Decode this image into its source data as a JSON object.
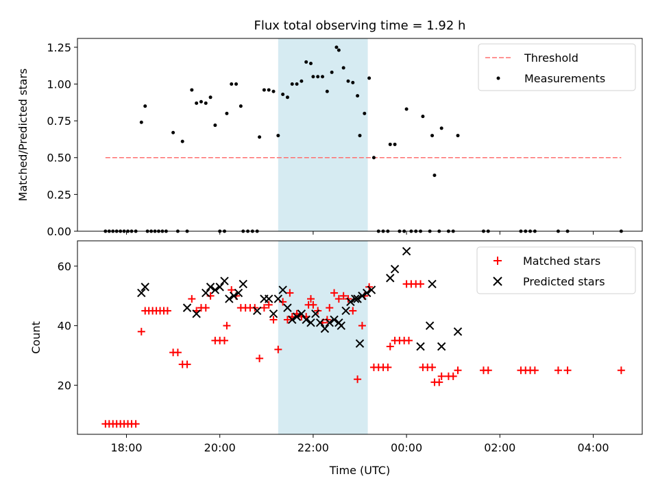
{
  "colors": {
    "threshold": "#ff6f6f",
    "measurement": "#000000",
    "matched": "#ff0000",
    "predicted": "#000000",
    "span_fill": "#add8e6"
  },
  "chart_data": [
    {
      "type": "scatter",
      "title": "Flux total observing time = 1.92 h",
      "xlabel": "",
      "ylabel": "Matched/Predicted stars",
      "x_unit": "hours since 00:00 UTC of first night",
      "xlim": [
        16.95,
        29.05
      ],
      "ylim": [
        0,
        1.31
      ],
      "yticks": [
        0,
        0.25,
        0.5,
        0.75,
        1.0,
        1.25
      ],
      "ytick_labels": [
        "0.00",
        "0.25",
        "0.50",
        "0.75",
        "1.00",
        "1.25"
      ],
      "highlight_span": [
        21.25,
        23.17
      ],
      "legend": {
        "position": "upper right",
        "entries": [
          "Threshold",
          "Measurements"
        ]
      },
      "series": [
        {
          "name": "Threshold",
          "style": "dashed-line",
          "x": [
            17.55,
            28.6
          ],
          "y": [
            0.5,
            0.5
          ]
        },
        {
          "name": "Measurements",
          "style": "dot",
          "points": [
            [
              17.55,
              0
            ],
            [
              17.63,
              0
            ],
            [
              17.71,
              0
            ],
            [
              17.79,
              0
            ],
            [
              17.87,
              0
            ],
            [
              17.95,
              0
            ],
            [
              18.03,
              0
            ],
            [
              18.11,
              0
            ],
            [
              18.2,
              0
            ],
            [
              18.32,
              0.74
            ],
            [
              18.4,
              0.85
            ],
            [
              18.45,
              0
            ],
            [
              18.53,
              0
            ],
            [
              18.61,
              0
            ],
            [
              18.69,
              0
            ],
            [
              18.77,
              0
            ],
            [
              18.85,
              0
            ],
            [
              19.0,
              0.67
            ],
            [
              19.1,
              0
            ],
            [
              19.2,
              0.61
            ],
            [
              19.3,
              0
            ],
            [
              19.4,
              0.96
            ],
            [
              19.5,
              0.87
            ],
            [
              19.6,
              0.88
            ],
            [
              19.7,
              0.87
            ],
            [
              19.8,
              0.91
            ],
            [
              19.9,
              0.72
            ],
            [
              20.0,
              0
            ],
            [
              20.1,
              0
            ],
            [
              20.15,
              0.8
            ],
            [
              20.25,
              1.0
            ],
            [
              20.35,
              1.0
            ],
            [
              20.45,
              0.85
            ],
            [
              20.5,
              0
            ],
            [
              20.6,
              0
            ],
            [
              20.7,
              0
            ],
            [
              20.8,
              0
            ],
            [
              20.85,
              0.64
            ],
            [
              20.95,
              0.96
            ],
            [
              21.05,
              0.96
            ],
            [
              21.15,
              0.95
            ],
            [
              21.25,
              0.65
            ],
            [
              21.35,
              0.93
            ],
            [
              21.45,
              0.91
            ],
            [
              21.55,
              1.0
            ],
            [
              21.65,
              1.0
            ],
            [
              21.75,
              1.02
            ],
            [
              21.85,
              1.15
            ],
            [
              21.95,
              1.14
            ],
            [
              22.0,
              1.05
            ],
            [
              22.1,
              1.05
            ],
            [
              22.2,
              1.05
            ],
            [
              22.3,
              0.95
            ],
            [
              22.4,
              1.08
            ],
            [
              22.5,
              1.25
            ],
            [
              22.55,
              1.23
            ],
            [
              22.65,
              1.11
            ],
            [
              22.75,
              1.02
            ],
            [
              22.85,
              1.01
            ],
            [
              22.95,
              0.92
            ],
            [
              23.0,
              0.65
            ],
            [
              23.1,
              0.8
            ],
            [
              23.2,
              1.04
            ],
            [
              23.3,
              0.5
            ],
            [
              23.4,
              0
            ],
            [
              23.5,
              0
            ],
            [
              23.6,
              0
            ],
            [
              23.65,
              0.59
            ],
            [
              23.75,
              0.59
            ],
            [
              23.85,
              0
            ],
            [
              23.95,
              0
            ],
            [
              24.0,
              0.83
            ],
            [
              24.1,
              0
            ],
            [
              24.2,
              0
            ],
            [
              24.3,
              0
            ],
            [
              24.35,
              0.78
            ],
            [
              24.5,
              0
            ],
            [
              24.55,
              0.65
            ],
            [
              24.6,
              0.38
            ],
            [
              24.7,
              0
            ],
            [
              24.75,
              0.7
            ],
            [
              24.9,
              0
            ],
            [
              25.0,
              0
            ],
            [
              25.1,
              0.65
            ],
            [
              25.65,
              0
            ],
            [
              25.75,
              0
            ],
            [
              26.45,
              0
            ],
            [
              26.55,
              0
            ],
            [
              26.65,
              0
            ],
            [
              26.75,
              0
            ],
            [
              27.25,
              0
            ],
            [
              27.45,
              0
            ],
            [
              28.6,
              0
            ]
          ]
        }
      ]
    },
    {
      "type": "scatter",
      "title": "",
      "xlabel": "Time (UTC)",
      "ylabel": "Count",
      "xlim": [
        16.95,
        29.05
      ],
      "ylim": [
        3.5,
        68.5
      ],
      "yticks": [
        20,
        40,
        60
      ],
      "ytick_labels": [
        "20",
        "40",
        "60"
      ],
      "xticks": [
        18,
        20,
        22,
        24,
        26,
        28
      ],
      "xtick_labels": [
        "18:00",
        "20:00",
        "22:00",
        "00:00",
        "02:00",
        "04:00"
      ],
      "highlight_span": [
        21.25,
        23.17
      ],
      "legend": {
        "position": "upper right",
        "entries": [
          "Matched stars",
          "Predicted stars"
        ]
      },
      "series": [
        {
          "name": "Matched stars",
          "marker": "plus",
          "points": [
            [
              17.55,
              7
            ],
            [
              17.63,
              7
            ],
            [
              17.71,
              7
            ],
            [
              17.79,
              7
            ],
            [
              17.87,
              7
            ],
            [
              17.95,
              7
            ],
            [
              18.03,
              7
            ],
            [
              18.11,
              7
            ],
            [
              18.2,
              7
            ],
            [
              18.32,
              38
            ],
            [
              18.4,
              45
            ],
            [
              18.48,
              45
            ],
            [
              18.56,
              45
            ],
            [
              18.64,
              45
            ],
            [
              18.72,
              45
            ],
            [
              18.8,
              45
            ],
            [
              18.88,
              45
            ],
            [
              19.0,
              31
            ],
            [
              19.1,
              31
            ],
            [
              19.2,
              27
            ],
            [
              19.3,
              27
            ],
            [
              19.4,
              49
            ],
            [
              19.5,
              45
            ],
            [
              19.6,
              46
            ],
            [
              19.7,
              46
            ],
            [
              19.8,
              50
            ],
            [
              19.9,
              35
            ],
            [
              20.0,
              35
            ],
            [
              20.1,
              35
            ],
            [
              20.15,
              40
            ],
            [
              20.25,
              52
            ],
            [
              20.35,
              50
            ],
            [
              20.45,
              46
            ],
            [
              20.55,
              46
            ],
            [
              20.65,
              46
            ],
            [
              20.75,
              46
            ],
            [
              20.85,
              29
            ],
            [
              20.95,
              46
            ],
            [
              21.05,
              47
            ],
            [
              21.15,
              42
            ],
            [
              21.25,
              32
            ],
            [
              21.35,
              48
            ],
            [
              21.45,
              42
            ],
            [
              21.5,
              51
            ],
            [
              21.55,
              43
            ],
            [
              21.65,
              44
            ],
            [
              21.75,
              43
            ],
            [
              21.85,
              43
            ],
            [
              21.9,
              47
            ],
            [
              21.95,
              49
            ],
            [
              22.0,
              47
            ],
            [
              22.1,
              45
            ],
            [
              22.2,
              41
            ],
            [
              22.3,
              42
            ],
            [
              22.35,
              46
            ],
            [
              22.45,
              51
            ],
            [
              22.55,
              49
            ],
            [
              22.65,
              50
            ],
            [
              22.75,
              49
            ],
            [
              22.85,
              45
            ],
            [
              22.95,
              22
            ],
            [
              23.05,
              40
            ],
            [
              23.1,
              50
            ],
            [
              23.2,
              53
            ],
            [
              23.3,
              26
            ],
            [
              23.4,
              26
            ],
            [
              23.5,
              26
            ],
            [
              23.6,
              26
            ],
            [
              23.65,
              33
            ],
            [
              23.75,
              35
            ],
            [
              23.85,
              35
            ],
            [
              23.95,
              35
            ],
            [
              24.05,
              35
            ],
            [
              24.0,
              54
            ],
            [
              24.1,
              54
            ],
            [
              24.2,
              54
            ],
            [
              24.3,
              54
            ],
            [
              24.35,
              26
            ],
            [
              24.45,
              26
            ],
            [
              24.55,
              26
            ],
            [
              24.6,
              21
            ],
            [
              24.7,
              21
            ],
            [
              24.75,
              23
            ],
            [
              24.9,
              23
            ],
            [
              25.0,
              23
            ],
            [
              25.1,
              25
            ],
            [
              25.65,
              25
            ],
            [
              25.75,
              25
            ],
            [
              26.45,
              25
            ],
            [
              26.55,
              25
            ],
            [
              26.65,
              25
            ],
            [
              26.75,
              25
            ],
            [
              27.25,
              25
            ],
            [
              27.45,
              25
            ],
            [
              28.6,
              25
            ]
          ]
        },
        {
          "name": "Predicted stars",
          "marker": "x",
          "points": [
            [
              18.32,
              51
            ],
            [
              18.4,
              53
            ],
            [
              19.3,
              46
            ],
            [
              19.5,
              44
            ],
            [
              19.7,
              51
            ],
            [
              19.8,
              53
            ],
            [
              19.9,
              52
            ],
            [
              20.0,
              53
            ],
            [
              20.1,
              55
            ],
            [
              20.2,
              49
            ],
            [
              20.3,
              50
            ],
            [
              20.4,
              51
            ],
            [
              20.5,
              54
            ],
            [
              20.8,
              45
            ],
            [
              20.95,
              49
            ],
            [
              21.05,
              49
            ],
            [
              21.15,
              44
            ],
            [
              21.25,
              49
            ],
            [
              21.35,
              52
            ],
            [
              21.45,
              46
            ],
            [
              21.55,
              42
            ],
            [
              21.65,
              43
            ],
            [
              21.75,
              44
            ],
            [
              21.85,
              42
            ],
            [
              21.95,
              41
            ],
            [
              22.05,
              44
            ],
            [
              22.15,
              41
            ],
            [
              22.25,
              39
            ],
            [
              22.35,
              41
            ],
            [
              22.45,
              42
            ],
            [
              22.55,
              41
            ],
            [
              22.6,
              40
            ],
            [
              22.7,
              45
            ],
            [
              22.8,
              48
            ],
            [
              22.9,
              49
            ],
            [
              22.95,
              49
            ],
            [
              23.0,
              34
            ],
            [
              23.05,
              50
            ],
            [
              23.15,
              51
            ],
            [
              23.25,
              52
            ],
            [
              23.65,
              56
            ],
            [
              23.75,
              59
            ],
            [
              24.0,
              65
            ],
            [
              24.3,
              33
            ],
            [
              24.5,
              40
            ],
            [
              24.55,
              54
            ],
            [
              24.75,
              33
            ],
            [
              25.1,
              38
            ]
          ]
        }
      ]
    }
  ]
}
